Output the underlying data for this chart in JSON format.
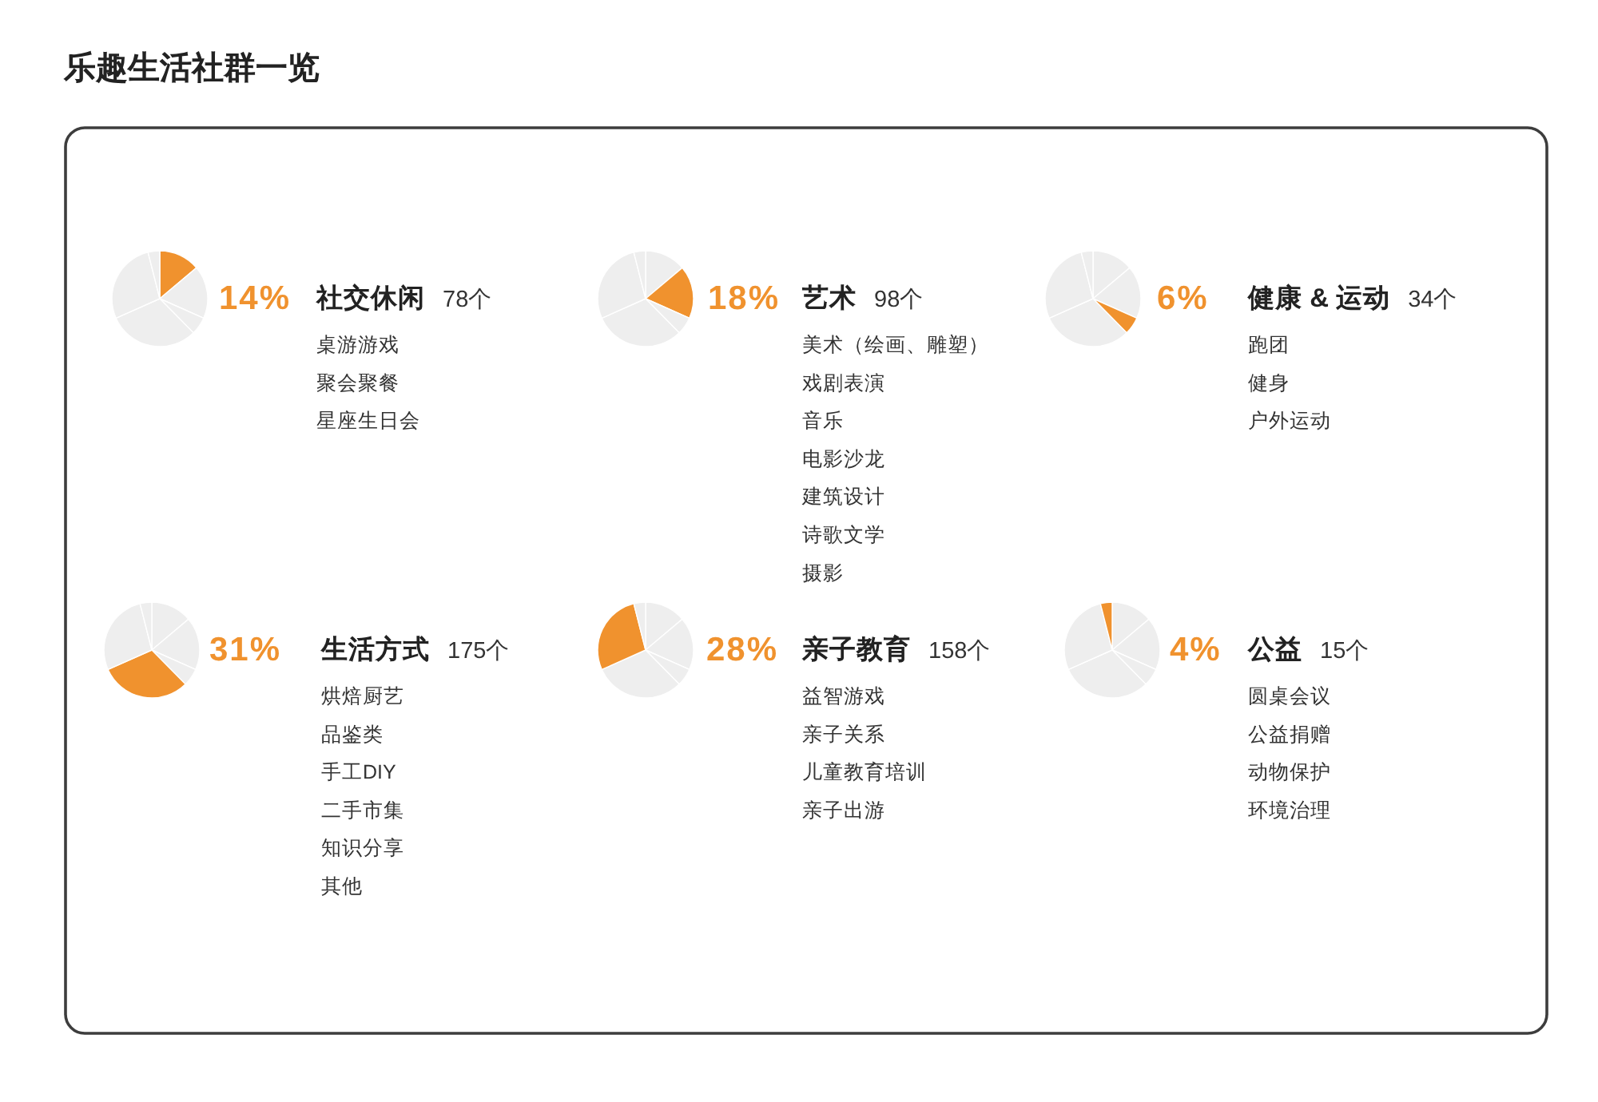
{
  "chart_data": [
    {
      "type": "pie",
      "title": "乐趣生活社群一览",
      "subtitle": "社交休闲",
      "categories": [
        null,
        null,
        null,
        null,
        null,
        null
      ],
      "values": [
        14,
        18,
        6,
        31,
        28,
        4
      ],
      "colors": [
        "#f0922e",
        "#eeeeee",
        "#eeeeee",
        "#eeeeee",
        "#eeeeee",
        "#eeeeee"
      ],
      "annotations": [
        "14%",
        "78个",
        "桌游游戏",
        "聚会聚餐",
        "星座生日会"
      ]
    },
    {
      "type": "pie",
      "subtitle": "艺术",
      "categories": [
        null,
        null,
        null,
        null,
        null,
        null
      ],
      "values": [
        14,
        18,
        6,
        31,
        28,
        4
      ],
      "colors": [
        "#eeeeee",
        "#f0922e",
        "#eeeeee",
        "#eeeeee",
        "#eeeeee",
        "#eeeeee"
      ],
      "annotations": [
        "18%",
        "98个",
        "美术（绘画、雕塑）",
        "戏剧表演",
        "音乐",
        "电影沙龙",
        "建筑设计",
        "诗歌文学",
        "摄影"
      ]
    },
    {
      "type": "pie",
      "subtitle": "健康 & 运动",
      "categories": [
        null,
        null,
        null,
        null,
        null,
        null
      ],
      "values": [
        14,
        18,
        6,
        31,
        28,
        4
      ],
      "colors": [
        "#eeeeee",
        "#eeeeee",
        "#f0922e",
        "#eeeeee",
        "#eeeeee",
        "#eeeeee"
      ],
      "annotations": [
        "6%",
        "34个",
        "跑团",
        "健身",
        "户外运动"
      ]
    },
    {
      "type": "pie",
      "subtitle": "生活方式",
      "categories": [
        null,
        null,
        null,
        null,
        null,
        null
      ],
      "values": [
        14,
        18,
        6,
        31,
        28,
        4
      ],
      "colors": [
        "#eeeeee",
        "#eeeeee",
        "#eeeeee",
        "#f0922e",
        "#eeeeee",
        "#eeeeee"
      ],
      "annotations": [
        "31%",
        "175个",
        "烘焙厨艺",
        "品鉴类",
        "手工DIY",
        "二手市集",
        "知识分享",
        "其他"
      ]
    },
    {
      "type": "pie",
      "subtitle": "亲子教育",
      "categories": [
        null,
        null,
        null,
        null,
        null,
        null
      ],
      "values": [
        14,
        18,
        6,
        31,
        28,
        4
      ],
      "colors": [
        "#eeeeee",
        "#eeeeee",
        "#eeeeee",
        "#eeeeee",
        "#f0922e",
        "#eeeeee"
      ],
      "annotations": [
        "28%",
        "158个",
        "益智游戏",
        "亲子关系",
        "儿童教育培训",
        "亲子出游"
      ]
    },
    {
      "type": "pie",
      "subtitle": "公益",
      "categories": [
        null,
        null,
        null,
        null,
        null,
        null
      ],
      "values": [
        14,
        18,
        6,
        31,
        28,
        4
      ],
      "colors": [
        "#eeeeee",
        "#eeeeee",
        "#eeeeee",
        "#eeeeee",
        "#eeeeee",
        "#f0922e"
      ],
      "annotations": [
        "4%",
        "15个",
        "圆桌会议",
        "公益捐赠",
        "动物保护",
        "环境治理"
      ]
    }
  ]
}
